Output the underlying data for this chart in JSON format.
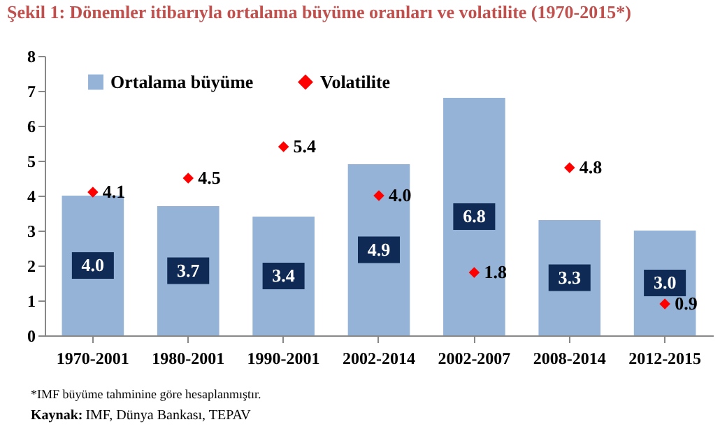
{
  "chart_data": {
    "type": "bar",
    "title": "Şekil 1: Dönemler itibarıyla ortalama büyüme oranları ve volatilite (1970-2015*)",
    "categories": [
      "1970-2001",
      "1980-2001",
      "1990-2001",
      "2002-2014",
      "2002-2007",
      "2008-2014",
      "2012-2015"
    ],
    "series": [
      {
        "name": "Ortalama büyüme",
        "color": "#95b3d7",
        "values": [
          4.0,
          3.7,
          3.4,
          4.9,
          6.8,
          3.3,
          3.0
        ],
        "value_labels": [
          "4.0",
          "3.7",
          "3.4",
          "4.9",
          "6.8",
          "3.3",
          "3.0"
        ]
      },
      {
        "name": "Volatilite",
        "type": "scatter",
        "color": "#ff0000",
        "marker": "diamond",
        "values": [
          4.1,
          4.5,
          5.4,
          4.0,
          1.8,
          4.8,
          0.9
        ],
        "value_labels": [
          "4.1",
          "4.5",
          "5.4",
          "4.0",
          "1.8",
          "4.8",
          "0.9"
        ]
      }
    ],
    "ylim": [
      0,
      8
    ],
    "yticks": [
      0,
      1,
      2,
      3,
      4,
      5,
      6,
      7,
      8
    ],
    "grid": false,
    "legend": "top left",
    "annotations": [
      "*IMF büyüme tahminine göre hesaplanmıştır.",
      "Kaynak: IMF, Dünya Bankası, TEPAV"
    ]
  }
}
